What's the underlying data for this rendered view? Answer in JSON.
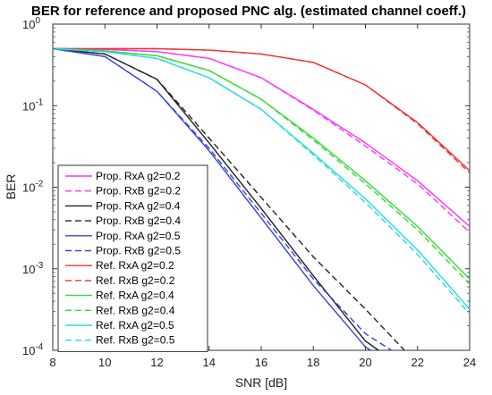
{
  "chart_data": {
    "type": "line",
    "title": "BER for reference and proposed PNC alg. (estimated channel coeff.)",
    "xlabel": "SNR [dB]",
    "ylabel": "BER",
    "xlim": [
      8,
      24
    ],
    "ylim": [
      0.0001,
      1
    ],
    "yscale": "log",
    "x_ticks": [
      8,
      10,
      12,
      14,
      16,
      18,
      20,
      22,
      24
    ],
    "y_ticks": [
      {
        "value": 1,
        "base": "10",
        "exp": "0"
      },
      {
        "value": 0.1,
        "base": "10",
        "exp": "-1"
      },
      {
        "value": 0.01,
        "base": "10",
        "exp": "-2"
      },
      {
        "value": 0.001,
        "base": "10",
        "exp": "-3"
      },
      {
        "value": 0.0001,
        "base": "10",
        "exp": "-4"
      }
    ],
    "grid": false,
    "legend_position": "bottom-left",
    "series": [
      {
        "name": "Prop. RxA g2=0.2",
        "color": "#ff33ff",
        "dash": "solid",
        "x": [
          8,
          10,
          12,
          14,
          16,
          18,
          20,
          22,
          24
        ],
        "y": [
          0.5,
          0.49,
          0.46,
          0.38,
          0.22,
          0.09,
          0.035,
          0.012,
          0.0033
        ]
      },
      {
        "name": "Prop. RxB g2=0.2",
        "color": "#ff33ff",
        "dash": "dashed",
        "x": [
          8,
          10,
          12,
          14,
          16,
          18,
          20,
          22,
          24
        ],
        "y": [
          0.5,
          0.49,
          0.46,
          0.38,
          0.22,
          0.088,
          0.032,
          0.011,
          0.0028
        ]
      },
      {
        "name": "Prop. RxA g2=0.4",
        "color": "#222222",
        "dash": "solid",
        "x": [
          8,
          10,
          12,
          14,
          16,
          18,
          20,
          20.5
        ],
        "y": [
          0.5,
          0.43,
          0.21,
          0.035,
          0.0055,
          0.00082,
          0.00013,
          0.0001
        ]
      },
      {
        "name": "Prop. RxB g2=0.4",
        "color": "#222222",
        "dash": "dashed",
        "x": [
          8,
          10,
          12,
          14,
          16,
          18,
          20,
          21.5
        ],
        "y": [
          0.5,
          0.43,
          0.21,
          0.04,
          0.0075,
          0.0014,
          0.00032,
          0.0001
        ]
      },
      {
        "name": "Prop. RxA g2=0.5",
        "color": "#3344dd",
        "dash": "solid",
        "x": [
          8,
          10,
          12,
          14,
          16,
          18,
          20,
          20.2
        ],
        "y": [
          0.5,
          0.4,
          0.15,
          0.028,
          0.0042,
          0.00062,
          0.00011,
          0.0001
        ]
      },
      {
        "name": "Prop. RxB g2=0.5",
        "color": "#3344dd",
        "dash": "dashed",
        "x": [
          8,
          10,
          12,
          14,
          16,
          18,
          20,
          21
        ],
        "y": [
          0.5,
          0.4,
          0.15,
          0.03,
          0.0048,
          0.00075,
          0.00016,
          0.0001
        ]
      },
      {
        "name": "Ref. RxA g2=0.2",
        "color": "#ee3333",
        "dash": "solid",
        "x": [
          8,
          10,
          12,
          14,
          16,
          18,
          20,
          22,
          24
        ],
        "y": [
          0.5,
          0.5,
          0.5,
          0.48,
          0.43,
          0.34,
          0.18,
          0.062,
          0.016
        ]
      },
      {
        "name": "Ref. RxB g2=0.2",
        "color": "#ee3333",
        "dash": "dashed",
        "x": [
          8,
          10,
          12,
          14,
          16,
          18,
          20,
          22,
          24
        ],
        "y": [
          0.5,
          0.5,
          0.5,
          0.48,
          0.43,
          0.34,
          0.18,
          0.06,
          0.015
        ]
      },
      {
        "name": "Ref. RxA g2=0.4",
        "color": "#33dd33",
        "dash": "solid",
        "x": [
          8,
          10,
          12,
          14,
          16,
          18,
          20,
          22,
          24
        ],
        "y": [
          0.5,
          0.47,
          0.41,
          0.27,
          0.12,
          0.04,
          0.012,
          0.0033,
          0.00075
        ]
      },
      {
        "name": "Ref. RxB g2=0.4",
        "color": "#33dd33",
        "dash": "dashed",
        "x": [
          8,
          10,
          12,
          14,
          16,
          18,
          20,
          22,
          24
        ],
        "y": [
          0.5,
          0.47,
          0.41,
          0.27,
          0.12,
          0.038,
          0.011,
          0.003,
          0.00065
        ]
      },
      {
        "name": "Ref. RxA g2=0.5",
        "color": "#22dddd",
        "dash": "solid",
        "x": [
          8,
          10,
          12,
          14,
          16,
          18,
          20,
          22,
          24
        ],
        "y": [
          0.5,
          0.46,
          0.38,
          0.22,
          0.09,
          0.026,
          0.0072,
          0.0017,
          0.00032
        ]
      },
      {
        "name": "Ref. RxB g2=0.5",
        "color": "#22dddd",
        "dash": "dashed",
        "x": [
          8,
          10,
          12,
          14,
          16,
          18,
          20,
          22,
          24
        ],
        "y": [
          0.5,
          0.46,
          0.38,
          0.22,
          0.09,
          0.025,
          0.0065,
          0.0015,
          0.00028
        ]
      }
    ]
  }
}
